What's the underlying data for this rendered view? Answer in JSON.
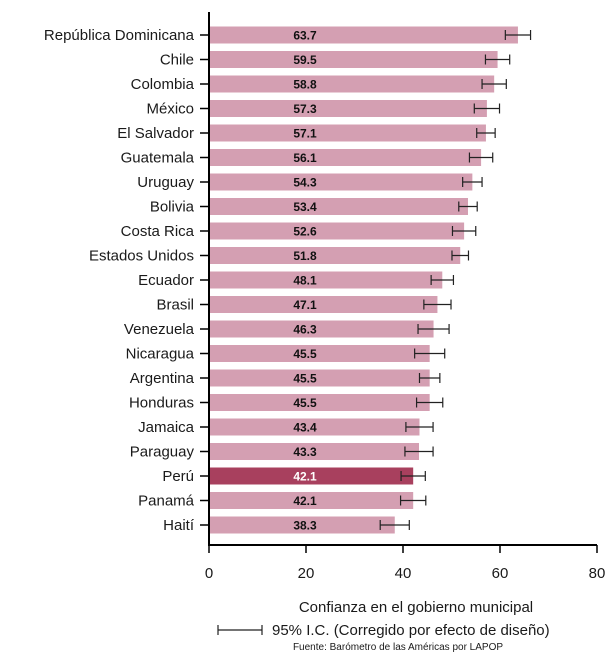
{
  "chart_data": {
    "type": "bar",
    "orientation": "horizontal",
    "categories": [
      "República Dominicana",
      "Chile",
      "Colombia",
      "México",
      "El Salvador",
      "Guatemala",
      "Uruguay",
      "Bolivia",
      "Costa Rica",
      "Estados Unidos",
      "Ecuador",
      "Brasil",
      "Venezuela",
      "Nicaragua",
      "Argentina",
      "Honduras",
      "Jamaica",
      "Paraguay",
      "Perú",
      "Panamá",
      "Haití"
    ],
    "values": [
      63.7,
      59.5,
      58.8,
      57.3,
      57.1,
      56.1,
      54.3,
      53.4,
      52.6,
      51.8,
      48.1,
      47.1,
      46.3,
      45.5,
      45.5,
      45.5,
      43.4,
      43.3,
      42.1,
      42.1,
      38.3
    ],
    "value_labels": [
      "63.7",
      "59.5",
      "58.8",
      "57.3",
      "57.1",
      "56.1",
      "54.3",
      "53.4",
      "52.6",
      "51.8",
      "48.1",
      "47.1",
      "46.3",
      "45.5",
      "45.5",
      "45.5",
      "43.4",
      "43.3",
      "42.1",
      "42.1",
      "38.3"
    ],
    "ci_low": [
      61.1,
      57.0,
      56.3,
      54.7,
      55.2,
      53.7,
      52.3,
      51.5,
      50.2,
      50.1,
      45.8,
      44.3,
      43.1,
      42.4,
      43.4,
      42.8,
      40.6,
      40.4,
      39.6,
      39.5,
      35.3
    ],
    "ci_high": [
      66.3,
      62.0,
      61.3,
      59.9,
      59.0,
      58.5,
      56.3,
      55.3,
      55.0,
      53.5,
      50.4,
      49.9,
      49.5,
      48.6,
      47.6,
      48.2,
      46.2,
      46.2,
      44.6,
      44.7,
      41.3
    ],
    "highlight": "Perú",
    "xlim": [
      0,
      80
    ],
    "xticks": [
      "0",
      "20",
      "40",
      "60",
      "80"
    ],
    "xlabel": "Confianza en el gobierno municipal",
    "legend": "95% I.C. (Corregido por efecto de diseño)",
    "source": "Fuente: Barómetro de las Américas por LAPOP",
    "colors": {
      "bar": "#d49fb2",
      "highlight": "#a8405e",
      "value_text": "#111111",
      "highlight_text": "#ffffff"
    }
  }
}
